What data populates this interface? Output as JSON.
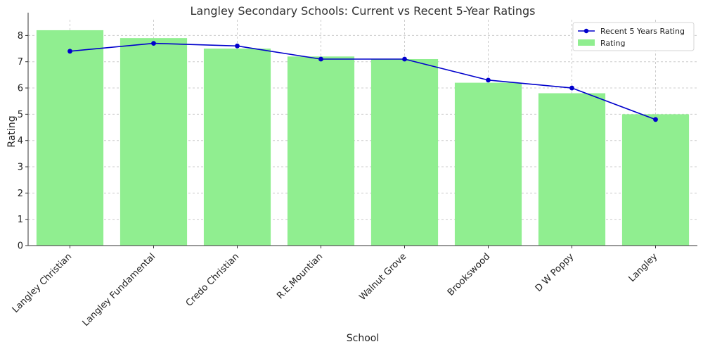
{
  "chart_data": {
    "type": "bar",
    "title": "Langley Secondary Schools: Current vs Recent 5-Year Ratings",
    "xlabel": "School",
    "ylabel": "Rating",
    "ylim": [
      0,
      8.6
    ],
    "yticks": [
      0,
      1,
      2,
      3,
      4,
      5,
      6,
      7,
      8
    ],
    "grid": true,
    "legend_position": "top-right",
    "categories": [
      "Langley Christian",
      "Langley Fundamental",
      "Credo Christian",
      "R.E.Mountian",
      "Walnut Grove",
      "Brookswood",
      "D W Poppy",
      "Langley"
    ],
    "series": [
      {
        "name": "Rating",
        "type": "bar",
        "color": "#90ee90",
        "values": [
          8.2,
          7.9,
          7.5,
          7.2,
          7.1,
          6.2,
          5.8,
          5.0
        ]
      },
      {
        "name": "Recent 5 Years Rating",
        "type": "line",
        "color": "#0000cc",
        "values": [
          7.4,
          7.7,
          7.6,
          7.1,
          7.1,
          6.3,
          6.0,
          4.8
        ]
      }
    ],
    "legend": [
      "Recent 5 Years Rating",
      "Rating"
    ]
  }
}
